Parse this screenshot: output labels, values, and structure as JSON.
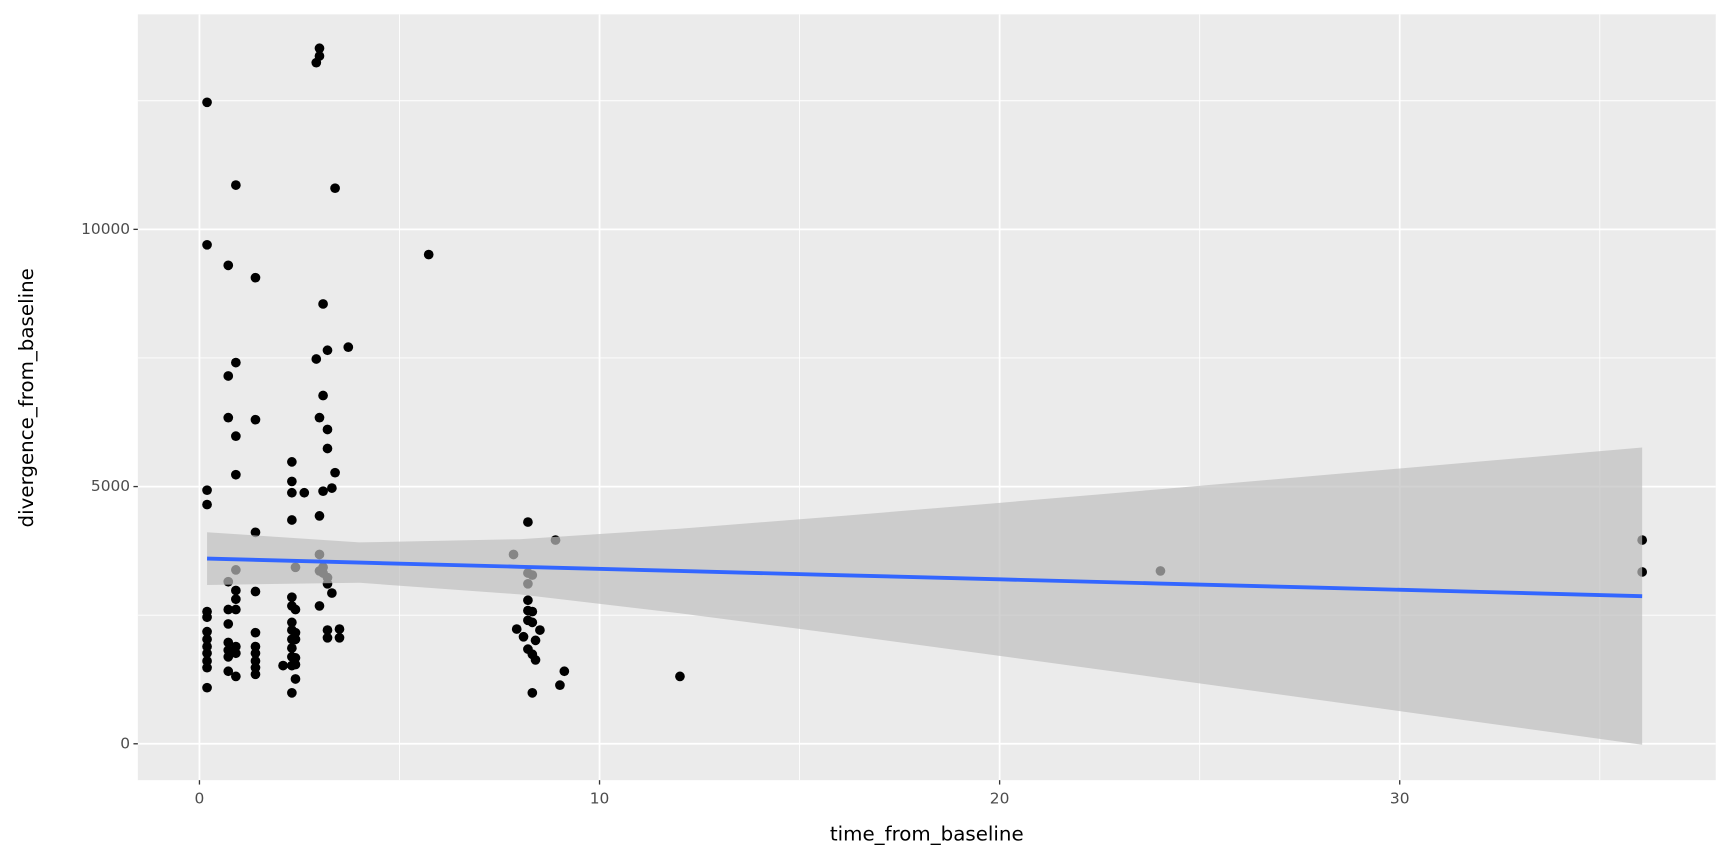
{
  "chart_data": {
    "type": "scatter",
    "x_label": "time_from_baseline",
    "y_label": "divergence_from_baseline",
    "xlim": [
      -1.54,
      37.9
    ],
    "ylim": [
      -707,
      14180
    ],
    "xticks": [
      0,
      10,
      20,
      30
    ],
    "yticks": [
      0,
      5000,
      10000
    ],
    "x_minor_breaks": [
      5,
      15,
      25,
      35
    ],
    "y_minor_breaks": [
      2500,
      7500,
      12500
    ],
    "grid": true,
    "series": [
      {
        "color": "#000000",
        "x": [
          0.19,
          0.19,
          0.19,
          0.19,
          0.19,
          0.19,
          0.19,
          0.19,
          0.19,
          0.19,
          0.19,
          0.19,
          0.19,
          0.72,
          0.72,
          0.72,
          0.72,
          0.72,
          0.72,
          0.72,
          0.72,
          0.72,
          0.72,
          0.91,
          0.91,
          0.91,
          0.91,
          0.91,
          0.91,
          0.91,
          0.91,
          0.91,
          0.91,
          0.91,
          1.4,
          1.4,
          1.4,
          1.4,
          1.4,
          1.4,
          1.4,
          1.4,
          1.4,
          1.4,
          2.09,
          2.31,
          2.31,
          2.31,
          2.31,
          2.31,
          2.31,
          2.31,
          2.31,
          2.31,
          2.31,
          2.31,
          2.31,
          2.31,
          2.4,
          2.4,
          2.4,
          2.4,
          2.4,
          2.4,
          2.4,
          2.62,
          2.92,
          2.92,
          3.0,
          3.0,
          3.0,
          3.0,
          3.0,
          3.0,
          3.0,
          3.09,
          3.09,
          3.09,
          3.09,
          3.09,
          3.2,
          3.2,
          3.2,
          3.2,
          3.2,
          3.2,
          3.2,
          3.31,
          3.31,
          3.39,
          3.39,
          3.5,
          3.5,
          3.72,
          5.73,
          7.85,
          7.93,
          8.1,
          8.21,
          8.21,
          8.21,
          8.21,
          8.21,
          8.21,
          8.21,
          8.32,
          8.32,
          8.32,
          8.32,
          8.32,
          8.4,
          8.4,
          8.51,
          8.9,
          9.01,
          9.12,
          12.01,
          24.02,
          36.06,
          36.06
        ],
        "values": [
          12470,
          9700,
          4930,
          4650,
          2570,
          2460,
          2180,
          2030,
          1890,
          1760,
          1610,
          1480,
          1090,
          9300,
          7150,
          6340,
          3150,
          2610,
          2330,
          1970,
          1820,
          1690,
          1410,
          10860,
          7410,
          5980,
          5230,
          3380,
          2980,
          2810,
          2610,
          1890,
          1760,
          1310,
          9060,
          6300,
          4110,
          2960,
          2160,
          1890,
          1760,
          1610,
          1480,
          1350,
          1520,
          5480,
          5100,
          4880,
          4350,
          2850,
          2680,
          2360,
          2210,
          2030,
          1860,
          1690,
          1520,
          990,
          3430,
          2610,
          2160,
          2030,
          1670,
          1540,
          1260,
          4880,
          13240,
          7480,
          13520,
          13370,
          6340,
          4430,
          3680,
          3360,
          2680,
          8550,
          6770,
          4910,
          3430,
          3320,
          7650,
          6110,
          5740,
          3230,
          3110,
          2210,
          2060,
          4970,
          2930,
          10800,
          5270,
          2230,
          2060,
          7710,
          9510,
          3680,
          2230,
          2080,
          4310,
          3320,
          3110,
          2790,
          2590,
          2400,
          1840,
          3280,
          2570,
          2360,
          1740,
          990,
          2010,
          1630,
          2210,
          3960,
          1140,
          1410,
          1310,
          3360,
          3960,
          3340
        ]
      }
    ],
    "smooth": {
      "color": "#3366ff",
      "ribbon_color": "#bfbfbf",
      "x": [
        0.19,
        4,
        8,
        12,
        16,
        20,
        24,
        28,
        32,
        36.06
      ],
      "fit": [
        3600,
        3522,
        3441,
        3359,
        3278,
        3197,
        3115,
        3034,
        2953,
        2870
      ],
      "lower": [
        3087,
        3130,
        2905,
        2538,
        2131,
        1710,
        1282,
        851,
        419,
        -20
      ],
      "upper": [
        4113,
        3914,
        3977,
        4180,
        4425,
        4684,
        4948,
        5217,
        5487,
        5760
      ]
    }
  }
}
